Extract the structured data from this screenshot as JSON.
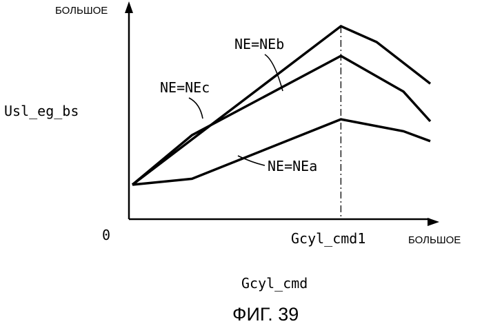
{
  "chart_data": {
    "type": "line",
    "y_axis_top_label": "БОЛЬШОЕ",
    "x_axis_end_label": "БОЛЬШОЕ",
    "ylabel": "Usl_eg_bs",
    "xlabel": "Gcyl_cmd",
    "origin_label": "0",
    "marker": {
      "label": "Gcyl_cmd1",
      "x": 0.7
    },
    "xlim": [
      0,
      1
    ],
    "ylim": [
      0,
      1
    ],
    "series": [
      {
        "name": "NE=NEa",
        "x": [
          0,
          0.2,
          0.7,
          0.91,
          1.0
        ],
        "y": [
          0.2,
          0.23,
          0.53,
          0.47,
          0.42
        ]
      },
      {
        "name": "NE=NEb",
        "x": [
          0,
          0.7,
          0.82,
          1.0
        ],
        "y": [
          0.2,
          1.0,
          0.92,
          0.71
        ]
      },
      {
        "name": "NE=NEc",
        "x": [
          0,
          0.2,
          0.7,
          0.91,
          1.0
        ],
        "y": [
          0.2,
          0.45,
          0.85,
          0.67,
          0.52
        ]
      }
    ],
    "grid": false,
    "legend": "inline labels"
  },
  "caption": {
    "figure_label": "ФИГ. 39"
  }
}
